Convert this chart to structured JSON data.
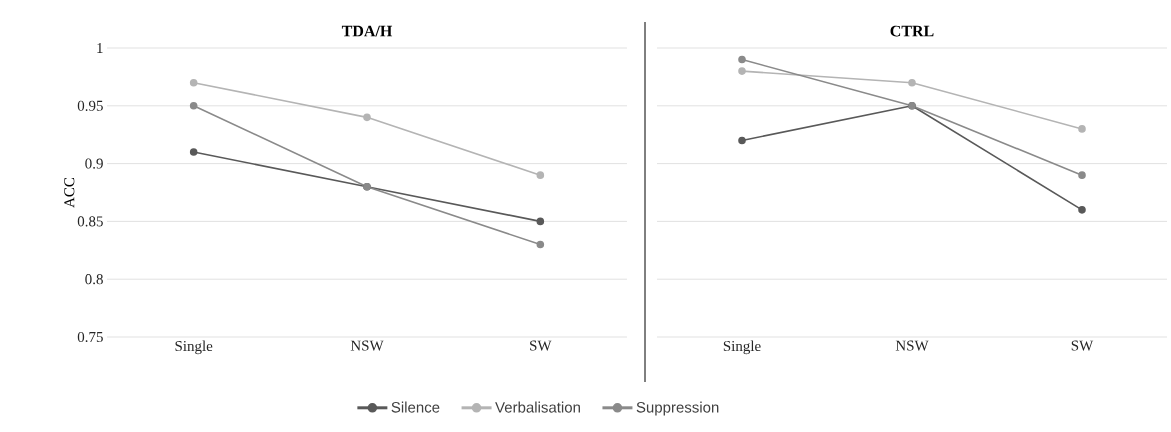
{
  "chart_data": [
    {
      "type": "line",
      "title": "TDA/H",
      "ylabel": "ACC",
      "categories": [
        "Single",
        "NSW",
        "SW"
      ],
      "series": [
        {
          "name": "Silence",
          "color": "#595959",
          "values": [
            0.91,
            0.88,
            0.85
          ]
        },
        {
          "name": "Verbalisation",
          "color": "#b4b4b4",
          "values": [
            0.97,
            0.94,
            0.89
          ]
        },
        {
          "name": "Suppression",
          "color": "#8a8a8a",
          "values": [
            0.95,
            0.88,
            0.83
          ]
        }
      ],
      "ylim": [
        0.75,
        1
      ],
      "yticks": [
        0.75,
        0.8,
        0.85,
        0.9,
        0.95,
        1
      ],
      "grid": "y",
      "marker": "circle",
      "legend": "bottom"
    },
    {
      "type": "line",
      "title": "CTRL",
      "categories": [
        "Single",
        "NSW",
        "SW"
      ],
      "series": [
        {
          "color": "#595959",
          "values": [
            0.92,
            0.95,
            0.86
          ]
        },
        {
          "color": "#b4b4b4",
          "values": [
            0.98,
            0.97,
            0.93
          ]
        },
        {
          "color": "#8a8a8a",
          "values": [
            0.99,
            0.95,
            0.89
          ]
        }
      ],
      "ylim": [
        0.75,
        1
      ],
      "yticks": [
        0.75,
        0.8,
        0.85,
        0.9,
        0.95,
        1
      ],
      "grid": "y",
      "marker": "circle",
      "tick_labels": "x"
    }
  ]
}
